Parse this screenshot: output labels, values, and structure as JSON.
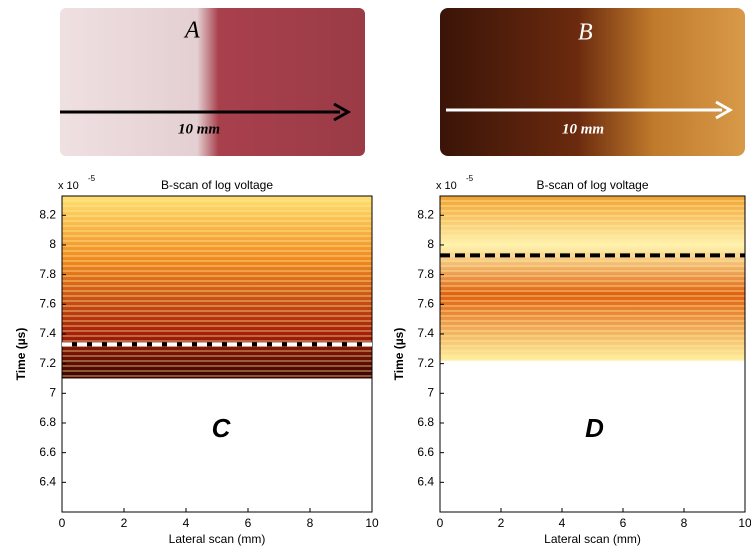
{
  "photos": [
    {
      "label": "A",
      "scale": "10 mm"
    },
    {
      "label": "B",
      "scale": "10 mm"
    }
  ],
  "plots": [
    {
      "title": "B-scan of log voltage",
      "label": "C",
      "xlabel": "Lateral scan (mm)",
      "ylabel": "Time (µs)",
      "exponent_base": "x 10",
      "exponent": "-5",
      "xlim": [
        0,
        10
      ],
      "ylim": [
        6.2,
        8.33
      ],
      "xticks": [
        0,
        2,
        4,
        6,
        8,
        10
      ],
      "yticks": [
        6.4,
        6.6,
        6.8,
        7,
        7.2,
        7.4,
        7.6,
        7.8,
        8,
        8.2
      ],
      "dashed_line": 7.33
    },
    {
      "title": "B-scan of log voltage",
      "label": "D",
      "xlabel": "Lateral scan (mm)",
      "ylabel": "Time (µs)",
      "exponent_base": "x 10",
      "exponent": "-5",
      "xlim": [
        0,
        10
      ],
      "ylim": [
        6.2,
        8.33
      ],
      "xticks": [
        0,
        2,
        4,
        6,
        8,
        10
      ],
      "yticks": [
        6.4,
        6.6,
        6.8,
        7,
        7.2,
        7.4,
        7.6,
        7.8,
        8,
        8.2
      ],
      "dashed_line": 7.93
    }
  ]
}
